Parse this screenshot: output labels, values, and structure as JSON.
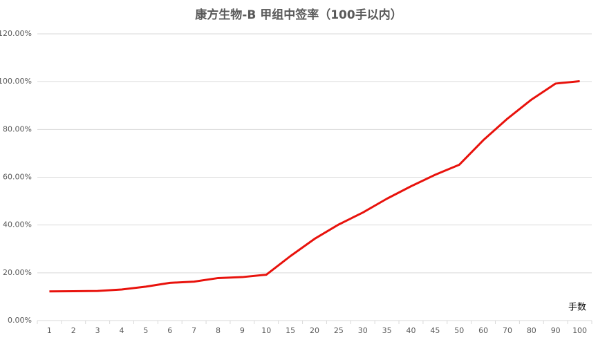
{
  "chart_data": {
    "type": "line",
    "title": "康方生物-B 甲组中签率（100手以内）",
    "x_label": "手数",
    "categories": [
      "1",
      "2",
      "3",
      "4",
      "5",
      "6",
      "7",
      "8",
      "9",
      "10",
      "15",
      "20",
      "25",
      "30",
      "35",
      "40",
      "45",
      "50",
      "60",
      "70",
      "80",
      "90",
      "100"
    ],
    "values": [
      12.2,
      12.3,
      12.4,
      13.0,
      14.2,
      15.8,
      16.3,
      17.8,
      18.2,
      19.2,
      27.0,
      34.2,
      40.2,
      45.2,
      51.0,
      56.2,
      61.0,
      65.2,
      75.5,
      84.5,
      92.5,
      99.2,
      100.2
    ],
    "color": "#e8120c",
    "ylim": [
      0,
      120
    ],
    "yticks": [
      {
        "value": 0,
        "label": "0.00%"
      },
      {
        "value": 20,
        "label": "20.00%"
      },
      {
        "value": 40,
        "label": "40.00%"
      },
      {
        "value": 60,
        "label": "60.00%"
      },
      {
        "value": 80,
        "label": "80.00%"
      },
      {
        "value": 100,
        "label": "100.00%"
      },
      {
        "value": 120,
        "label": "120.00%"
      }
    ],
    "grid": true
  }
}
